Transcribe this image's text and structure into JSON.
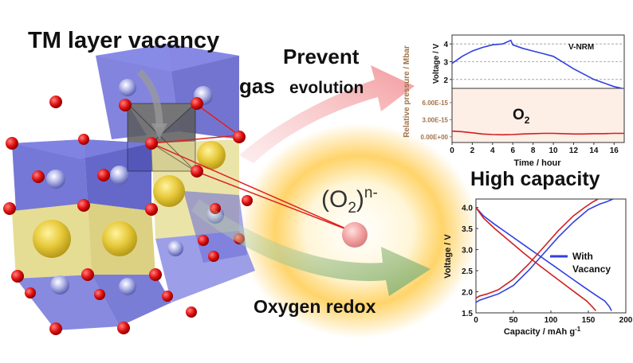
{
  "labels": {
    "vacancy": "TM layer vacancy",
    "prevent": "Prevent",
    "gas": "gas",
    "evolution": "evolution",
    "superoxide_base": "(O",
    "superoxide_sub": "2",
    "superoxide_close": ")",
    "superoxide_sup": "n-",
    "high_capacity": "High capacity",
    "oxygen_redox": "Oxygen redox"
  },
  "colors": {
    "voltage_line": "#3040e0",
    "o2_line": "#d02020",
    "pink_arrow": "#f4a6a8",
    "green_arrow": "#9fbf86",
    "pressure_label": "#a0724a",
    "o2_panel": "#fdeee6"
  },
  "chart_data": [
    {
      "type": "line",
      "panel": "top",
      "annotation": "V-NRM",
      "xlabel": "Time / hour",
      "ylabel": "Voltage / V",
      "xlim": [
        0,
        17
      ],
      "ylim": [
        1.5,
        4.5
      ],
      "xticks": [
        0,
        2,
        4,
        6,
        8,
        10,
        12,
        14,
        16
      ],
      "yticks": [
        2,
        3,
        4
      ],
      "grid": "dashed horizontal",
      "series": [
        {
          "x": [
            0,
            1,
            2,
            3,
            4,
            5,
            5.8,
            6,
            7,
            8,
            9,
            10,
            11,
            12,
            13,
            14,
            15,
            16,
            16.8
          ],
          "y": [
            2.9,
            3.3,
            3.6,
            3.8,
            3.95,
            4.0,
            4.2,
            3.95,
            3.75,
            3.6,
            3.45,
            3.3,
            2.95,
            2.6,
            2.3,
            2.0,
            1.8,
            1.6,
            1.5
          ]
        }
      ]
    },
    {
      "type": "line",
      "panel": "bottom",
      "annotation_main": "O",
      "annotation_sub": "2",
      "ylabel": "Relative pressure / Mbar",
      "xlim": [
        0,
        17
      ],
      "ylim": [
        -1e-15,
        8.5e-15
      ],
      "yticks": [
        0,
        3e-15,
        6e-15
      ],
      "ytick_labels": [
        "0.00E+00",
        "3.00E-15",
        "6.00E-15"
      ],
      "series": [
        {
          "x": [
            0,
            1,
            2,
            3,
            4,
            5,
            6,
            7,
            8,
            9,
            10,
            11,
            12,
            13,
            14,
            15,
            16,
            17
          ],
          "y": [
            1e-15,
            9e-16,
            7e-16,
            5e-16,
            4e-16,
            3.5e-16,
            4e-16,
            5e-16,
            5.5e-16,
            6e-16,
            6e-16,
            5.5e-16,
            5e-16,
            5e-16,
            5.5e-16,
            5.5e-16,
            6e-16,
            6e-16
          ]
        }
      ]
    },
    {
      "type": "line",
      "panel": "capacity",
      "xlabel": "Capacity / mAh g",
      "xlabel_sup": "-1",
      "ylabel": "Voltage / V",
      "xlim": [
        0,
        200
      ],
      "ylim": [
        1.5,
        4.2
      ],
      "xticks": [
        0,
        50,
        100,
        150,
        200
      ],
      "yticks": [
        1.5,
        2.0,
        2.5,
        3.0,
        3.5,
        4.0
      ],
      "legend": "right",
      "series": [
        {
          "name": "With Vacancy",
          "part": "charge",
          "color": "blue",
          "x": [
            0,
            5,
            15,
            30,
            50,
            70,
            90,
            110,
            130,
            150,
            165,
            175,
            183
          ],
          "y": [
            1.75,
            1.8,
            1.86,
            1.95,
            2.15,
            2.5,
            2.9,
            3.3,
            3.65,
            3.95,
            4.08,
            4.14,
            4.2
          ]
        },
        {
          "name": "With Vacancy",
          "part": "discharge",
          "color": "blue",
          "x": [
            0,
            10,
            25,
            45,
            65,
            85,
            105,
            125,
            145,
            160,
            172,
            178,
            181
          ],
          "y": [
            4.0,
            3.8,
            3.6,
            3.35,
            3.1,
            2.85,
            2.6,
            2.35,
            2.1,
            1.92,
            1.78,
            1.65,
            1.55
          ]
        },
        {
          "part": "charge",
          "color": "red",
          "x": [
            0,
            5,
            15,
            30,
            50,
            70,
            90,
            110,
            130,
            145,
            155,
            163
          ],
          "y": [
            1.85,
            1.9,
            1.95,
            2.05,
            2.3,
            2.65,
            3.05,
            3.45,
            3.8,
            4.0,
            4.12,
            4.2
          ]
        },
        {
          "part": "discharge",
          "color": "red",
          "x": [
            0,
            10,
            25,
            45,
            65,
            85,
            105,
            120,
            135,
            148,
            155,
            160
          ],
          "y": [
            4.0,
            3.75,
            3.5,
            3.2,
            2.9,
            2.62,
            2.35,
            2.15,
            1.95,
            1.78,
            1.65,
            1.55
          ]
        }
      ]
    }
  ]
}
